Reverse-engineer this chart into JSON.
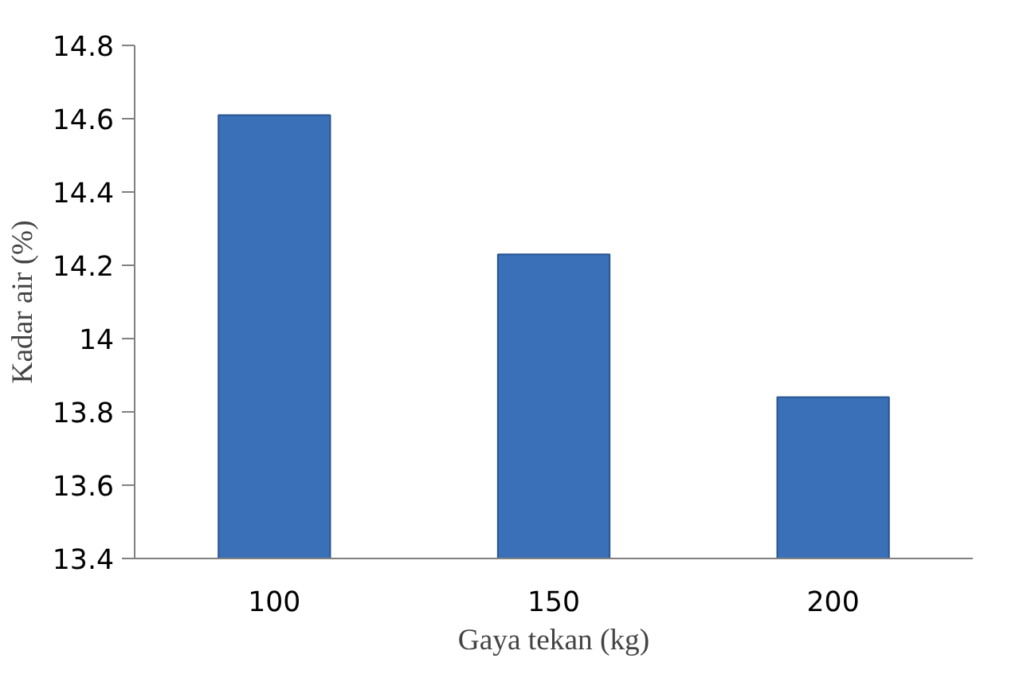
{
  "chart_data": {
    "type": "bar",
    "xlabel": "Gaya tekan (kg)",
    "ylabel": "Kadar air (%)",
    "categories": [
      "100",
      "150",
      "200"
    ],
    "values": [
      14.61,
      14.23,
      13.84
    ],
    "color": "#3a70b8",
    "ylim": [
      13.4,
      14.8
    ],
    "yticks": [
      13.4,
      13.6,
      13.8,
      14,
      14.2,
      14.4,
      14.6,
      14.8
    ],
    "grid": false
  }
}
